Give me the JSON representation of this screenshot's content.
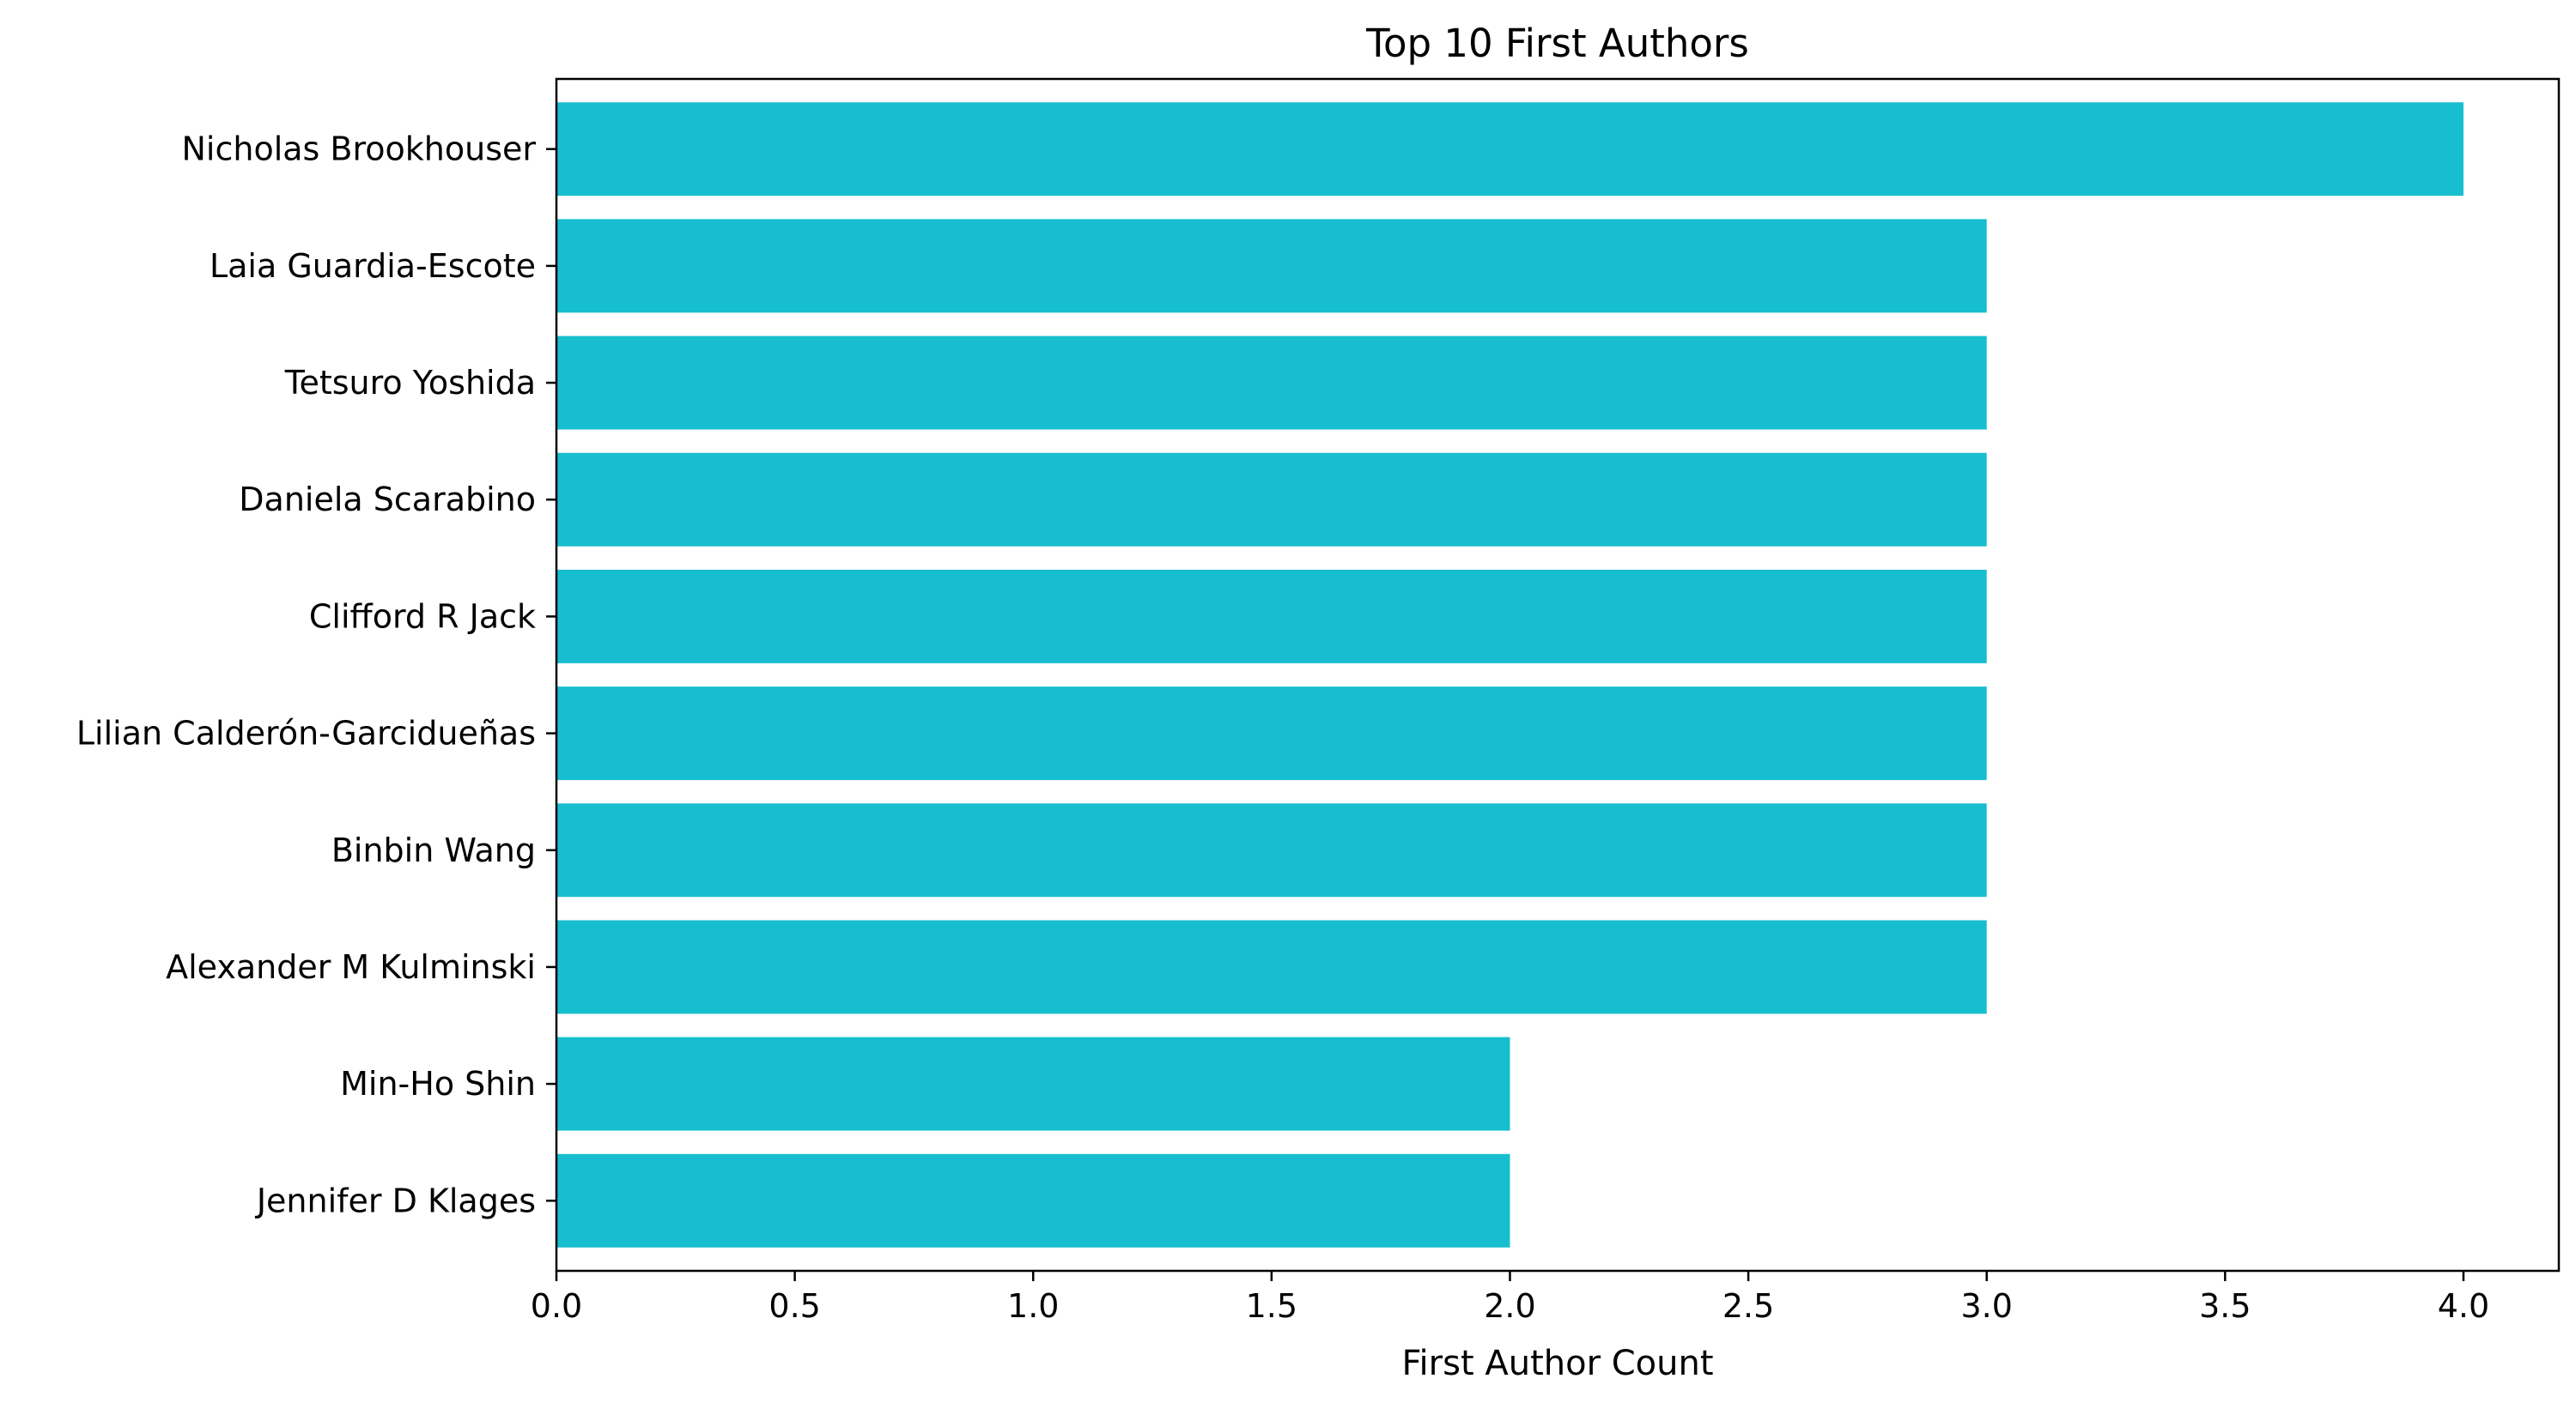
{
  "chart_data": {
    "type": "bar",
    "orientation": "horizontal",
    "title": "Top 10 First Authors",
    "xlabel": "First Author Count",
    "ylabel": "",
    "categories": [
      "Nicholas Brookhouser",
      "Laia Guardia-Escote",
      "Tetsuro Yoshida",
      "Daniela Scarabino",
      "Clifford R Jack",
      "Lilian Calderón-Garcidueñas",
      "Binbin Wang",
      "Alexander M Kulminski",
      "Min-Ho Shin",
      "Jennifer D Klages"
    ],
    "values": [
      4,
      3,
      3,
      3,
      3,
      3,
      3,
      3,
      2,
      2
    ],
    "xlim": [
      0,
      4.2
    ],
    "xticks": [
      "0.0",
      "0.5",
      "1.0",
      "1.5",
      "2.0",
      "2.5",
      "3.0",
      "3.5",
      "4.0"
    ],
    "bar_color": "#17becf",
    "grid": false,
    "legend": "none"
  }
}
